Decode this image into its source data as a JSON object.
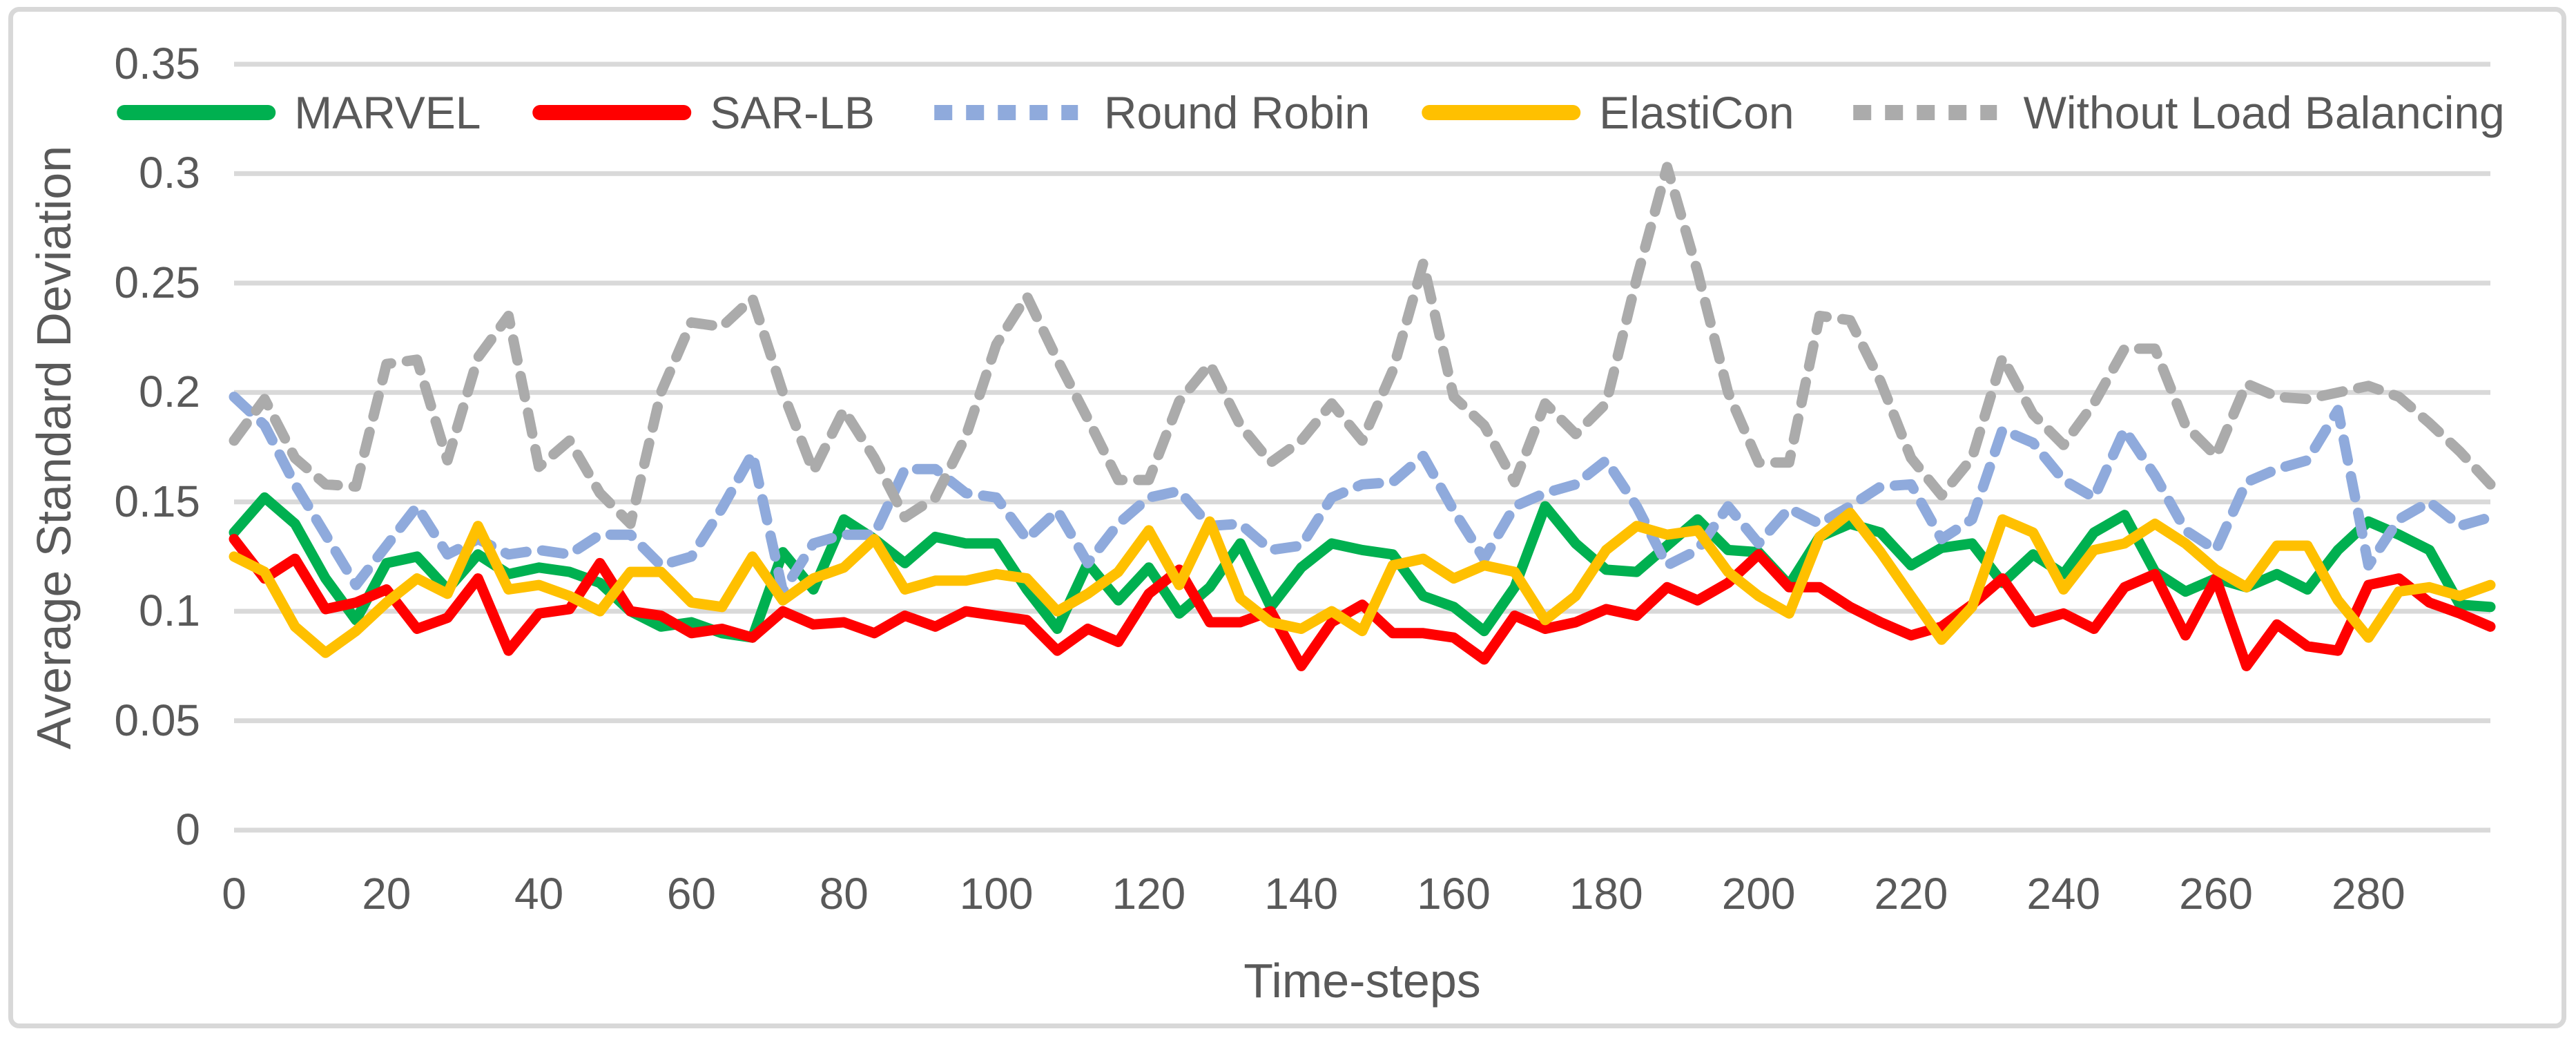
{
  "figure": {
    "background": "#ffffff",
    "border_color": "#d8d8d8",
    "text_color": "#595959",
    "gridline_color": "#d9d9d9"
  },
  "chart_data": {
    "type": "line",
    "title": "",
    "xlabel": "Time-steps",
    "ylabel": "Average Standard Deviation",
    "xlim": [
      0,
      296
    ],
    "ylim": [
      0,
      0.35
    ],
    "x_ticks": [
      0,
      20,
      40,
      60,
      80,
      100,
      120,
      140,
      160,
      180,
      200,
      220,
      240,
      260,
      280
    ],
    "y_ticks": [
      0,
      0.05,
      0.1,
      0.15,
      0.2,
      0.25,
      0.3,
      0.35
    ],
    "grid": "horizontal",
    "legend_position": "top",
    "x": [
      0,
      4,
      8,
      12,
      16,
      20,
      24,
      28,
      32,
      36,
      40,
      44,
      48,
      52,
      56,
      60,
      64,
      68,
      72,
      76,
      80,
      84,
      88,
      92,
      96,
      100,
      104,
      108,
      112,
      116,
      120,
      124,
      128,
      132,
      136,
      140,
      144,
      148,
      152,
      156,
      160,
      164,
      168,
      172,
      176,
      180,
      184,
      188,
      192,
      196,
      200,
      204,
      208,
      212,
      216,
      220,
      224,
      228,
      232,
      236,
      240,
      244,
      248,
      252,
      256,
      260,
      264,
      268,
      272,
      276,
      280,
      284,
      288,
      292,
      296
    ],
    "series": [
      {
        "name": "MARVEL",
        "color": "#00B050",
        "style": "solid",
        "values": [
          0.136,
          0.152,
          0.14,
          0.115,
          0.096,
          0.122,
          0.125,
          0.11,
          0.126,
          0.117,
          0.12,
          0.118,
          0.113,
          0.1,
          0.093,
          0.095,
          0.09,
          0.088,
          0.127,
          0.11,
          0.142,
          0.133,
          0.122,
          0.134,
          0.131,
          0.131,
          0.11,
          0.092,
          0.122,
          0.105,
          0.12,
          0.099,
          0.111,
          0.131,
          0.102,
          0.12,
          0.131,
          0.128,
          0.126,
          0.107,
          0.102,
          0.091,
          0.111,
          0.148,
          0.131,
          0.119,
          0.118,
          0.13,
          0.142,
          0.128,
          0.127,
          0.112,
          0.134,
          0.14,
          0.136,
          0.121,
          0.129,
          0.131,
          0.113,
          0.126,
          0.117,
          0.136,
          0.144,
          0.118,
          0.109,
          0.115,
          0.111,
          0.117,
          0.11,
          0.128,
          0.141,
          0.135,
          0.128,
          0.103,
          0.102
        ]
      },
      {
        "name": "SAR-LB",
        "color": "#FF0000",
        "style": "solid",
        "values": [
          0.133,
          0.115,
          0.124,
          0.101,
          0.104,
          0.11,
          0.092,
          0.097,
          0.115,
          0.082,
          0.099,
          0.101,
          0.122,
          0.1,
          0.098,
          0.09,
          0.092,
          0.088,
          0.1,
          0.094,
          0.095,
          0.09,
          0.098,
          0.093,
          0.1,
          0.098,
          0.096,
          0.082,
          0.092,
          0.086,
          0.108,
          0.119,
          0.095,
          0.095,
          0.1,
          0.075,
          0.095,
          0.103,
          0.09,
          0.09,
          0.088,
          0.078,
          0.098,
          0.092,
          0.095,
          0.101,
          0.098,
          0.111,
          0.105,
          0.113,
          0.126,
          0.111,
          0.111,
          0.102,
          0.095,
          0.089,
          0.093,
          0.103,
          0.115,
          0.095,
          0.099,
          0.092,
          0.111,
          0.117,
          0.089,
          0.115,
          0.075,
          0.094,
          0.084,
          0.082,
          0.112,
          0.115,
          0.104,
          0.099,
          0.093
        ]
      },
      {
        "name": "Round Robin",
        "color": "#8FAADC",
        "style": "dashed",
        "values": [
          0.198,
          0.185,
          0.158,
          0.135,
          0.112,
          0.13,
          0.148,
          0.126,
          0.133,
          0.126,
          0.128,
          0.126,
          0.135,
          0.135,
          0.121,
          0.125,
          0.147,
          0.172,
          0.109,
          0.131,
          0.135,
          0.135,
          0.165,
          0.165,
          0.154,
          0.152,
          0.133,
          0.146,
          0.122,
          0.14,
          0.152,
          0.155,
          0.139,
          0.14,
          0.128,
          0.13,
          0.152,
          0.158,
          0.159,
          0.171,
          0.146,
          0.124,
          0.148,
          0.154,
          0.158,
          0.169,
          0.148,
          0.121,
          0.128,
          0.148,
          0.131,
          0.147,
          0.14,
          0.148,
          0.157,
          0.158,
          0.133,
          0.142,
          0.183,
          0.177,
          0.16,
          0.152,
          0.183,
          0.162,
          0.137,
          0.128,
          0.159,
          0.165,
          0.169,
          0.192,
          0.121,
          0.142,
          0.15,
          0.139,
          0.143
        ]
      },
      {
        "name": "ElastiCon",
        "color": "#FFC000",
        "style": "solid",
        "values": [
          0.125,
          0.118,
          0.093,
          0.081,
          0.091,
          0.104,
          0.115,
          0.108,
          0.139,
          0.11,
          0.112,
          0.107,
          0.1,
          0.118,
          0.118,
          0.104,
          0.102,
          0.125,
          0.105,
          0.115,
          0.12,
          0.133,
          0.11,
          0.114,
          0.114,
          0.117,
          0.115,
          0.1,
          0.108,
          0.118,
          0.137,
          0.112,
          0.141,
          0.106,
          0.095,
          0.092,
          0.1,
          0.091,
          0.121,
          0.124,
          0.115,
          0.121,
          0.118,
          0.096,
          0.107,
          0.128,
          0.139,
          0.135,
          0.137,
          0.118,
          0.107,
          0.099,
          0.134,
          0.145,
          0.127,
          0.107,
          0.087,
          0.102,
          0.142,
          0.136,
          0.11,
          0.128,
          0.131,
          0.14,
          0.131,
          0.119,
          0.111,
          0.13,
          0.13,
          0.105,
          0.088,
          0.109,
          0.111,
          0.107,
          0.112
        ]
      },
      {
        "name": "Without Load Balancing",
        "color": "#ABABAB",
        "style": "dashed",
        "values": [
          0.178,
          0.197,
          0.17,
          0.158,
          0.157,
          0.213,
          0.215,
          0.169,
          0.216,
          0.235,
          0.166,
          0.178,
          0.154,
          0.14,
          0.2,
          0.232,
          0.23,
          0.243,
          0.2,
          0.164,
          0.192,
          0.17,
          0.143,
          0.152,
          0.18,
          0.222,
          0.244,
          0.215,
          0.188,
          0.16,
          0.16,
          0.196,
          0.213,
          0.185,
          0.168,
          0.178,
          0.195,
          0.178,
          0.21,
          0.259,
          0.198,
          0.185,
          0.159,
          0.195,
          0.181,
          0.195,
          0.252,
          0.303,
          0.255,
          0.2,
          0.168,
          0.168,
          0.235,
          0.233,
          0.205,
          0.17,
          0.153,
          0.17,
          0.216,
          0.19,
          0.176,
          0.195,
          0.22,
          0.22,
          0.185,
          0.171,
          0.204,
          0.198,
          0.197,
          0.2,
          0.203,
          0.198,
          0.186,
          0.173,
          0.158
        ]
      }
    ]
  }
}
